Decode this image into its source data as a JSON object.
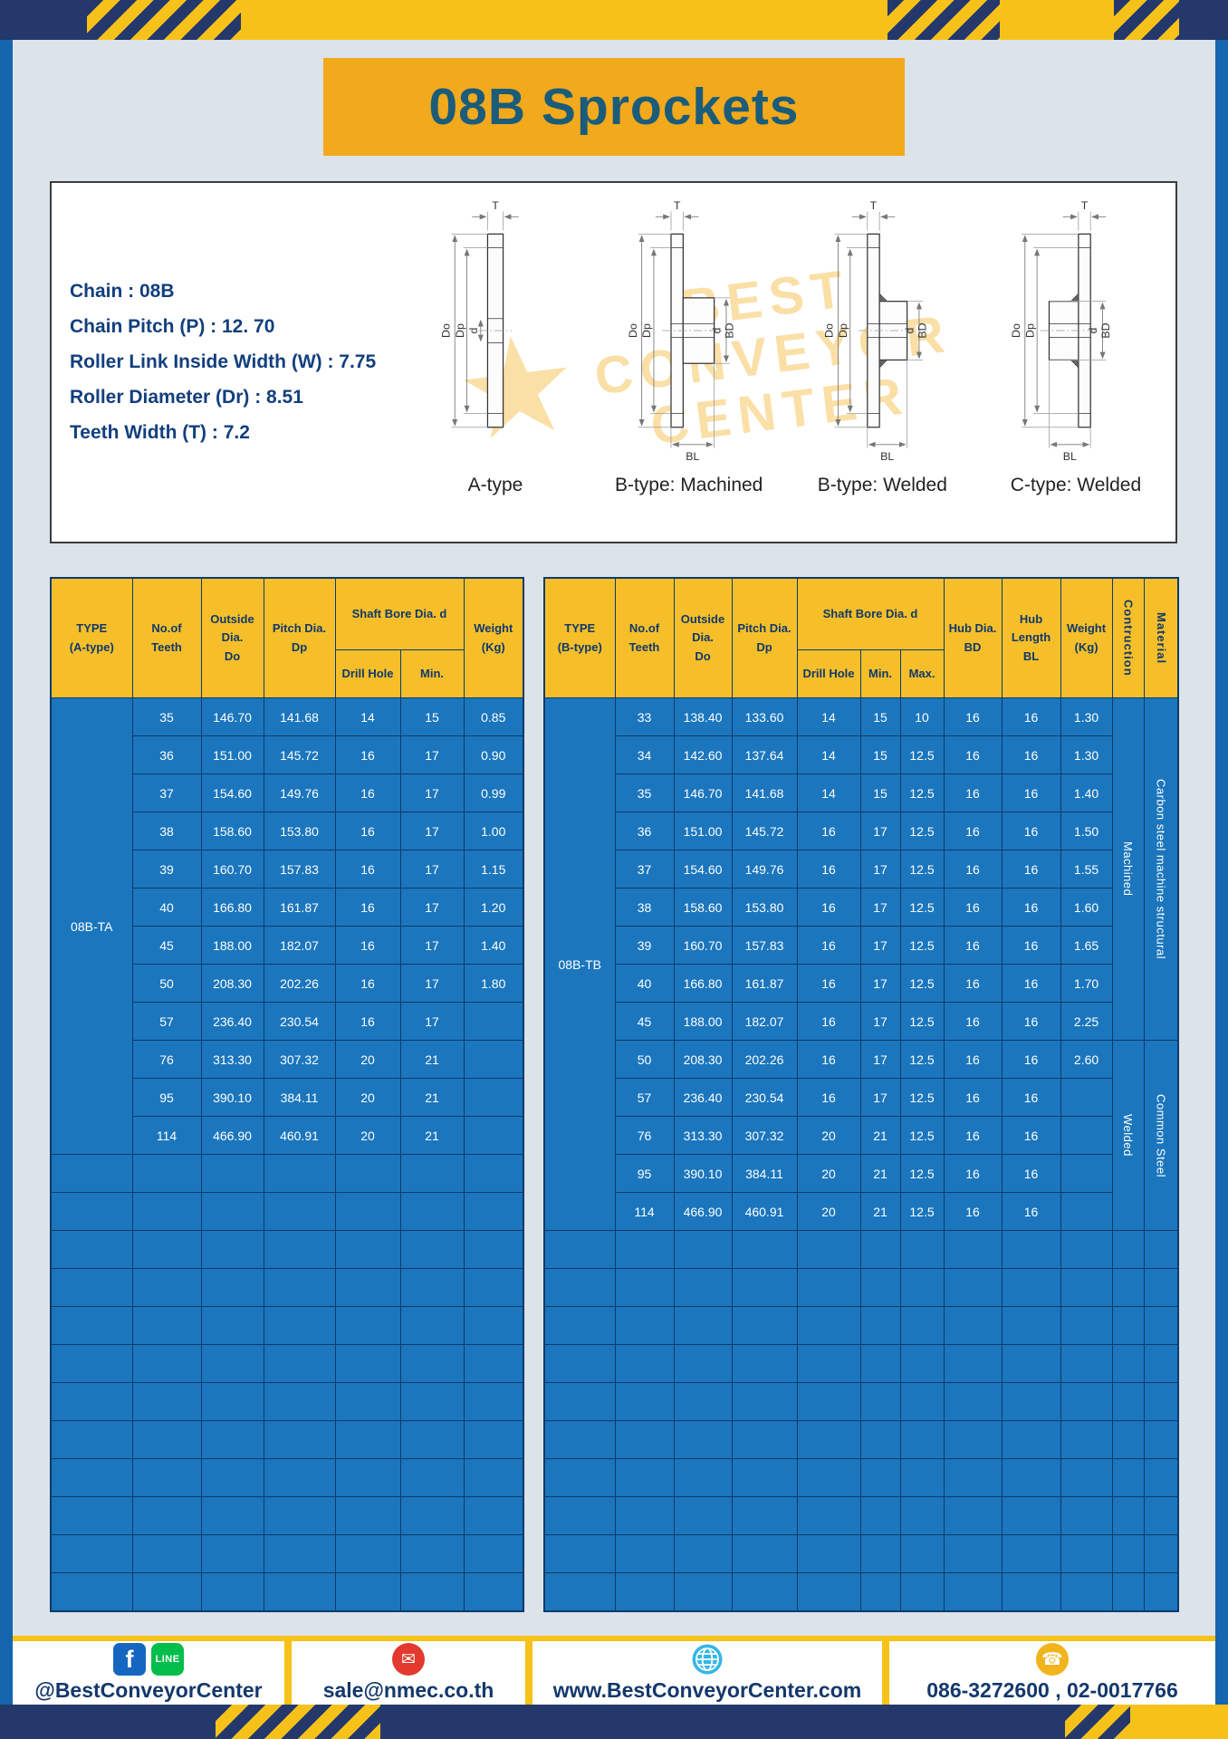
{
  "title": "08B Sprockets",
  "specs": [
    "Chain : 08B",
    "Chain Pitch (P) : 12. 70",
    "Roller Link Inside Width (W) : 7.75",
    "Roller Diameter (Dr) : 8.51",
    "Teeth Width (T) : 7.2"
  ],
  "watermark": {
    "star": "★",
    "lines": [
      "BEST",
      "CONVEYOR",
      "CENTER"
    ]
  },
  "dims": {
    "t": "T",
    "do": "Do",
    "dp": "Dp",
    "d": "d",
    "bd": "BD",
    "bl": "BL"
  },
  "diagram_labels": [
    "A-type",
    "B-type: Machined",
    "B-type: Welded",
    "C-type: Welded"
  ],
  "table_a": {
    "h": {
      "type1": "TYPE",
      "type2": "(A-type)",
      "teeth1": "No.of",
      "teeth2": "Teeth",
      "od1": "Outside",
      "od2": "Dia.",
      "od3": "Do",
      "pd1": "Pitch Dia.",
      "pd2": "Dp",
      "bore": "Shaft Bore Dia. d",
      "drill": "Drill Hole",
      "min": "Min.",
      "w1": "Weight",
      "w2": "(Kg)"
    },
    "body": [
      [
        {
          "t": "08B-TA",
          "rs": 12,
          "cls": "type-cell",
          "n": "type-value"
        },
        "35",
        "146.70",
        "141.68",
        "14",
        "15",
        "0.85"
      ],
      [
        "36",
        "151.00",
        "145.72",
        "16",
        "17",
        "0.90"
      ],
      [
        "37",
        "154.60",
        "149.76",
        "16",
        "17",
        "0.99"
      ],
      [
        "38",
        "158.60",
        "153.80",
        "16",
        "17",
        "1.00"
      ],
      [
        "39",
        "160.70",
        "157.83",
        "16",
        "17",
        "1.15"
      ],
      [
        "40",
        "166.80",
        "161.87",
        "16",
        "17",
        "1.20"
      ],
      [
        "45",
        "188.00",
        "182.07",
        "16",
        "17",
        "1.40"
      ],
      [
        "50",
        "208.30",
        "202.26",
        "16",
        "17",
        "1.80"
      ],
      [
        "57",
        "236.40",
        "230.54",
        "16",
        "17",
        ""
      ],
      [
        "76",
        "313.30",
        "307.32",
        "20",
        "21",
        ""
      ],
      [
        "95",
        "390.10",
        "384.11",
        "20",
        "21",
        ""
      ],
      [
        "114",
        "466.90",
        "460.91",
        "20",
        "21",
        ""
      ],
      {
        "empty": 7,
        "count": 12
      }
    ]
  },
  "table_b": {
    "h": {
      "type1": "TYPE",
      "type2": "(B-type)",
      "teeth1": "No.of",
      "teeth2": "Teeth",
      "od1": "Outside",
      "od2": "Dia.",
      "od3": "Do",
      "pd1": "Pitch Dia.",
      "pd2": "Dp",
      "bore": "Shaft Bore Dia. d",
      "drill": "Drill Hole",
      "min": "Min.",
      "max": "Max.",
      "hd1": "Hub Dia.",
      "hd2": "BD",
      "hl1": "Hub",
      "hl2": "Length",
      "hl3": "BL",
      "w1": "Weight",
      "w2": "(Kg)",
      "constr": "Contruction",
      "mat": "Material"
    },
    "body": [
      [
        {
          "t": "08B-TB",
          "rs": 14,
          "cls": "type-cell",
          "n": "type-value"
        },
        "33",
        "138.40",
        "133.60",
        "14",
        "15",
        "10",
        "16",
        "16",
        "1.30",
        {
          "t": "Machined",
          "rs": 9,
          "cls": "vtext",
          "n": "construction-value"
        },
        {
          "t": "Carbon steel  machine structural",
          "rs": 9,
          "cls": "vtext",
          "n": "material-value"
        }
      ],
      [
        "34",
        "142.60",
        "137.64",
        "14",
        "15",
        "12.5",
        "16",
        "16",
        "1.30"
      ],
      [
        "35",
        "146.70",
        "141.68",
        "14",
        "15",
        "12.5",
        "16",
        "16",
        "1.40"
      ],
      [
        "36",
        "151.00",
        "145.72",
        "16",
        "17",
        "12.5",
        "16",
        "16",
        "1.50"
      ],
      [
        "37",
        "154.60",
        "149.76",
        "16",
        "17",
        "12.5",
        "16",
        "16",
        "1.55"
      ],
      [
        "38",
        "158.60",
        "153.80",
        "16",
        "17",
        "12.5",
        "16",
        "16",
        "1.60"
      ],
      [
        "39",
        "160.70",
        "157.83",
        "16",
        "17",
        "12.5",
        "16",
        "16",
        "1.65"
      ],
      [
        "40",
        "166.80",
        "161.87",
        "16",
        "17",
        "12.5",
        "16",
        "16",
        "1.70"
      ],
      [
        "45",
        "188.00",
        "182.07",
        "16",
        "17",
        "12.5",
        "16",
        "16",
        "2.25"
      ],
      [
        "50",
        "208.30",
        "202.26",
        "16",
        "17",
        "12.5",
        "16",
        "16",
        "2.60",
        {
          "t": "Welded",
          "rs": 5,
          "cls": "vtext",
          "n": "construction-value"
        },
        {
          "t": "Common  Steel",
          "rs": 5,
          "cls": "vtext",
          "n": "material-value"
        }
      ],
      [
        "57",
        "236.40",
        "230.54",
        "16",
        "17",
        "12.5",
        "16",
        "16",
        ""
      ],
      [
        "76",
        "313.30",
        "307.32",
        "20",
        "21",
        "12.5",
        "16",
        "16",
        ""
      ],
      [
        "95",
        "390.10",
        "384.11",
        "20",
        "21",
        "12.5",
        "16",
        "16",
        ""
      ],
      [
        "114",
        "466.90",
        "460.91",
        "20",
        "21",
        "12.5",
        "16",
        "16",
        ""
      ],
      {
        "empty": 12,
        "count": 10
      }
    ]
  },
  "footer": {
    "facebook": "f",
    "line": "LINE",
    "handle": "@BestConveyorCenter",
    "mail_icon": "✉",
    "email": "sale@nmec.co.th",
    "website": "www.BestConveyorCenter.com",
    "phone_icon": "☎",
    "phones": "086-3272600 , 02-0017766"
  },
  "colors": {
    "navy": "#24386b",
    "yellow": "#f6c21a",
    "header_gold": "#f6bf2a",
    "banner_orange": "#f2a91c",
    "table_blue": "#1b76bd",
    "border_blue": "#1566ae",
    "cell_border": "#0d3a6b",
    "text_navy": "#123f7d",
    "title_teal": "#1a5c7a"
  }
}
